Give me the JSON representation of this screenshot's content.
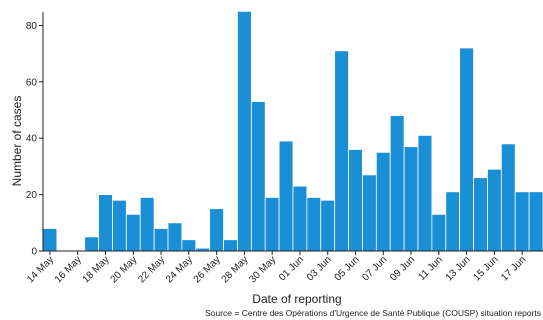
{
  "chart_data": {
    "type": "bar",
    "title": "",
    "xlabel": "Date of reporting",
    "ylabel": "Number of cases",
    "ylim": [
      0,
      86
    ],
    "yticks": [
      0,
      20,
      40,
      60,
      80
    ],
    "grid": false,
    "legend": "none",
    "bar_color": "#1a8fd6",
    "bar_edge_color": "#ffffff",
    "categories": [
      "14 May",
      "15 May",
      "16 May",
      "17 May",
      "18 May",
      "19 May",
      "20 May",
      "21 May",
      "22 May",
      "23 May",
      "24 May",
      "25 May",
      "26 May",
      "27 May",
      "28 May",
      "29 May",
      "30 May",
      "31 May",
      "01 Jun",
      "02 Jun",
      "03 Jun",
      "04 Jun",
      "05 Jun",
      "06 Jun",
      "07 Jun",
      "08 Jun",
      "09 Jun",
      "10 Jun",
      "11 Jun",
      "12 Jun",
      "13 Jun",
      "14 Jun",
      "15 Jun",
      "16 Jun",
      "17 Jun",
      "18 Jun"
    ],
    "values": [
      8,
      0,
      0,
      5,
      20,
      18,
      13,
      19,
      8,
      10,
      4,
      1,
      15,
      4,
      85,
      53,
      19,
      39,
      23,
      19,
      18,
      71,
      36,
      27,
      35,
      48,
      37,
      41,
      13,
      21,
      72,
      26,
      29,
      38,
      21,
      21
    ],
    "xtick_labels": [
      "14 May",
      "16 May",
      "18 May",
      "20 May",
      "22 May",
      "24 May",
      "26 May",
      "28 May",
      "30 May",
      "01 Jun",
      "03 Jun",
      "05 Jun",
      "07 Jun",
      "09 Jun",
      "11 Jun",
      "13 Jun",
      "15 Jun",
      "17 Jun"
    ],
    "source": "Source = Centre des Opérations d'Urgence de Santé Publique (COUSP) situation reports"
  }
}
